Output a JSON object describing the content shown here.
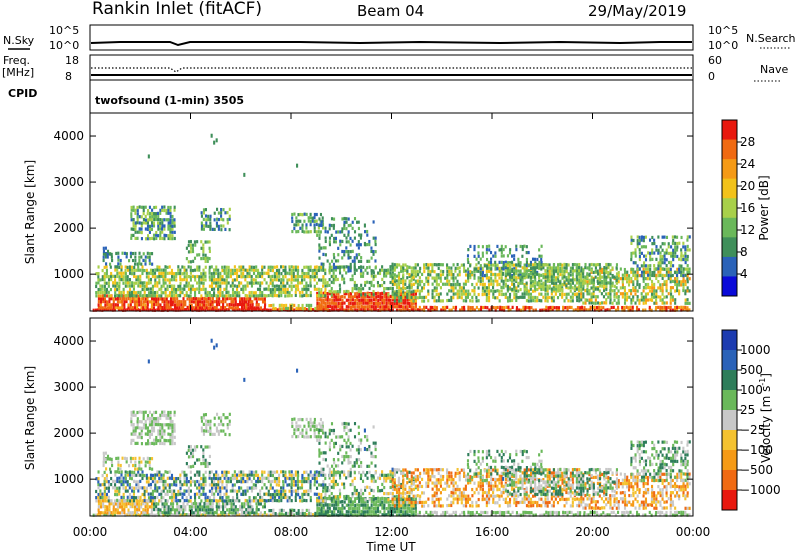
{
  "header": {
    "station": "Rankin Inlet (fitACF)",
    "beam": "Beam 04",
    "date": "29/May/2019"
  },
  "top_panels": {
    "nsky_label": "N.Sky",
    "nsky_ticks": [
      "10^5",
      "10^0"
    ],
    "nsearch_label": "N.Search",
    "nsearch_ticks": [
      "10^5",
      "10^0"
    ],
    "freq_label_1": "Freq.",
    "freq_label_2": "[MHz]",
    "freq_ticks": [
      "18",
      "8"
    ],
    "nave_label": "Nave",
    "nave_ticks": [
      "60",
      "0"
    ],
    "cpid_label": "CPID",
    "cpid_text": "twofsound (1-min) 3505"
  },
  "colors": {
    "power_scale": [
      "#0a0ad8",
      "#2a62b8",
      "#3f8f5a",
      "#6ab85a",
      "#a8d04a",
      "#f2c21a",
      "#f59a16",
      "#f06a12",
      "#e8180e"
    ],
    "velocity_scale": [
      "#e8180e",
      "#f06a12",
      "#f59a16",
      "#f4c230",
      "#c8c8c8",
      "#6ab85a",
      "#2e7d5a",
      "#2a62b8",
      "#1c3bb0"
    ]
  },
  "chart_data": [
    {
      "type": "heatmap",
      "name": "power",
      "ylabel": "Slant Range [km]",
      "yticks": [
        "1000",
        "2000",
        "3000",
        "4000"
      ],
      "ylim": [
        200,
        4500
      ],
      "xlim_hours": [
        0,
        24
      ],
      "colorbar_label": "Power [dB]",
      "colorbar_ticks": [
        "4",
        "8",
        "12",
        "16",
        "20",
        "24",
        "28"
      ]
    },
    {
      "type": "heatmap",
      "name": "velocity",
      "ylabel": "Slant Range [km]",
      "yticks": [
        "1000",
        "2000",
        "3000",
        "4000"
      ],
      "ylim": [
        200,
        4500
      ],
      "xlim_hours": [
        0,
        24
      ],
      "xlabel": "Time UT",
      "xticks": [
        "00:00",
        "04:00",
        "08:00",
        "12:00",
        "16:00",
        "20:00",
        "00:00"
      ],
      "colorbar_label": "Velocity [m s",
      "colorbar_label_sup": "-1",
      "colorbar_label_end": "]",
      "colorbar_ticks": [
        "1000",
        "500",
        "100",
        "25",
        "−25",
        "−100",
        "−500",
        "−1000"
      ]
    }
  ]
}
